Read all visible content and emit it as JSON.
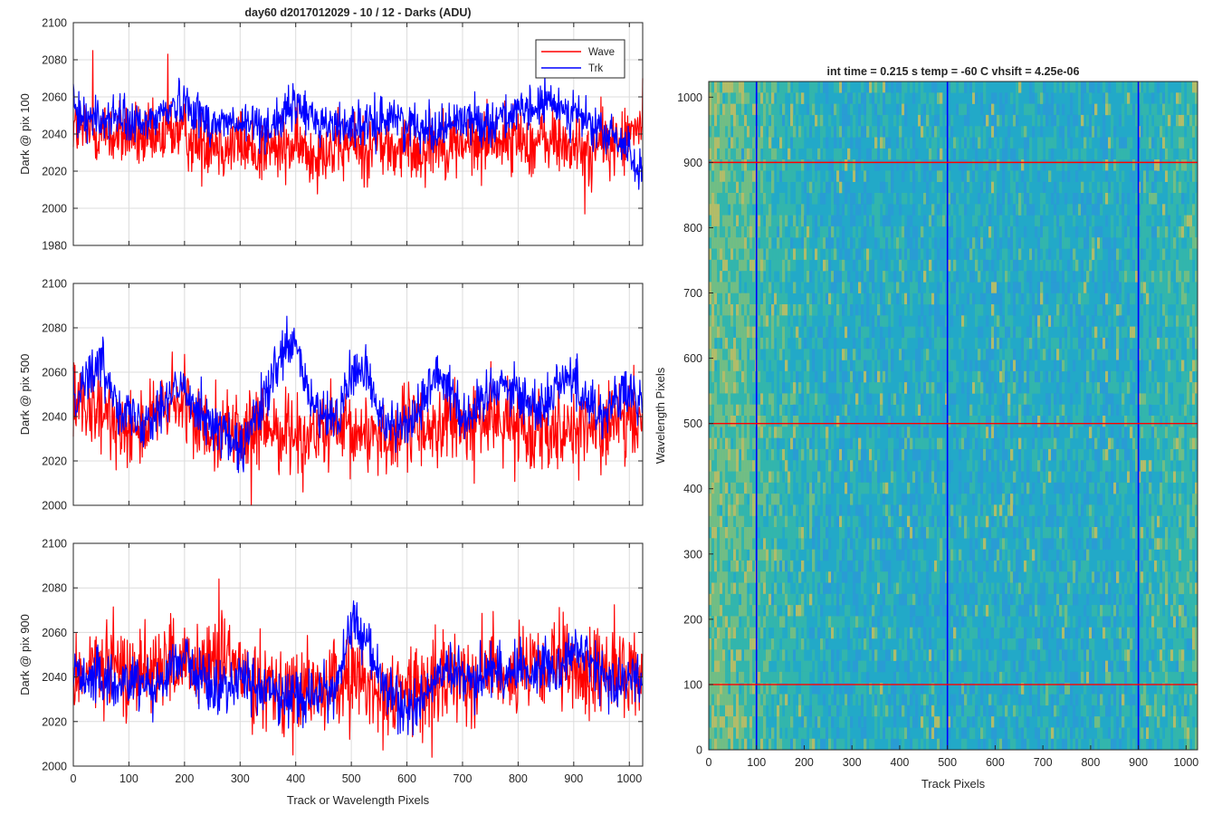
{
  "chart_data": [
    {
      "type": "line",
      "title": "day60 d2017012029 - 10 / 12 - Darks (ADU)",
      "xlabel": "",
      "ylabel": "Dark @ pix 100",
      "xlim": [
        0,
        1024
      ],
      "ylim": [
        1980,
        2100
      ],
      "xticks": [
        0,
        100,
        200,
        300,
        400,
        500,
        600,
        700,
        800,
        900,
        1000
      ],
      "yticks": [
        1980,
        2000,
        2020,
        2040,
        2060,
        2080,
        2100
      ],
      "show_xtick_labels": false,
      "grid": true,
      "legend": {
        "placement": "top-right",
        "entries": [
          "Wave",
          "Trk"
        ]
      },
      "series": [
        {
          "name": "Wave",
          "color": "#ff0000",
          "x": [
            0,
            25,
            50,
            75,
            100,
            125,
            150,
            175,
            200,
            225,
            250,
            275,
            300,
            325,
            350,
            375,
            400,
            425,
            450,
            475,
            500,
            525,
            550,
            575,
            600,
            625,
            650,
            675,
            700,
            725,
            750,
            775,
            800,
            825,
            850,
            875,
            900,
            925,
            950,
            975,
            1000,
            1024
          ],
          "y": [
            2045,
            2040,
            2042,
            2038,
            2041,
            2036,
            2035,
            2043,
            2040,
            2034,
            2038,
            2033,
            2036,
            2030,
            2032,
            2031,
            2034,
            2029,
            2033,
            2030,
            2035,
            2031,
            2036,
            2030,
            2033,
            2031,
            2037,
            2034,
            2035,
            2033,
            2040,
            2036,
            2038,
            2034,
            2037,
            2035,
            2033,
            2030,
            2036,
            2034,
            2038,
            2046
          ],
          "noise": 9,
          "spike_at": [
            [
              35,
              2085
            ],
            [
              170,
              2083
            ],
            [
              920,
              1997
            ],
            [
              1024,
              2070
            ]
          ]
        },
        {
          "name": "Trk",
          "color": "#0000ff",
          "x": [
            0,
            25,
            50,
            75,
            100,
            125,
            150,
            175,
            200,
            225,
            250,
            275,
            300,
            325,
            350,
            375,
            400,
            425,
            450,
            475,
            500,
            525,
            550,
            575,
            600,
            625,
            650,
            675,
            700,
            725,
            750,
            775,
            800,
            825,
            850,
            875,
            900,
            925,
            950,
            975,
            1000,
            1024
          ],
          "y": [
            2052,
            2050,
            2047,
            2050,
            2046,
            2044,
            2050,
            2054,
            2058,
            2051,
            2045,
            2047,
            2044,
            2046,
            2044,
            2048,
            2056,
            2050,
            2046,
            2044,
            2046,
            2043,
            2047,
            2051,
            2044,
            2046,
            2042,
            2045,
            2049,
            2047,
            2046,
            2051,
            2050,
            2053,
            2057,
            2055,
            2052,
            2046,
            2040,
            2038,
            2032,
            2015
          ],
          "noise": 6
        }
      ]
    },
    {
      "type": "line",
      "title": "",
      "xlabel": "",
      "ylabel": "Dark @ pix 500",
      "xlim": [
        0,
        1024
      ],
      "ylim": [
        2000,
        2100
      ],
      "xticks": [
        0,
        100,
        200,
        300,
        400,
        500,
        600,
        700,
        800,
        900,
        1000
      ],
      "yticks": [
        2000,
        2020,
        2040,
        2060,
        2080,
        2100
      ],
      "show_xtick_labels": false,
      "grid": true,
      "series": [
        {
          "name": "Wave",
          "color": "#ff0000",
          "x": [
            0,
            25,
            50,
            75,
            100,
            125,
            150,
            175,
            200,
            225,
            250,
            275,
            300,
            325,
            350,
            375,
            400,
            425,
            450,
            475,
            500,
            525,
            550,
            575,
            600,
            625,
            650,
            675,
            700,
            725,
            750,
            775,
            800,
            825,
            850,
            875,
            900,
            925,
            950,
            975,
            1000,
            1024
          ],
          "y": [
            2045,
            2042,
            2040,
            2038,
            2036,
            2035,
            2040,
            2045,
            2042,
            2038,
            2036,
            2034,
            2033,
            2032,
            2035,
            2034,
            2033,
            2030,
            2034,
            2032,
            2030,
            2034,
            2032,
            2030,
            2035,
            2036,
            2034,
            2038,
            2035,
            2036,
            2040,
            2038,
            2036,
            2034,
            2037,
            2035,
            2036,
            2034,
            2035,
            2037,
            2036,
            2040
          ],
          "noise": 9,
          "spike_at": [
            [
              320,
              2000
            ],
            [
              200,
              2068
            ]
          ]
        },
        {
          "name": "Trk",
          "color": "#0000ff",
          "x": [
            0,
            25,
            50,
            75,
            100,
            125,
            150,
            175,
            200,
            225,
            250,
            275,
            300,
            325,
            350,
            375,
            400,
            425,
            450,
            475,
            500,
            525,
            550,
            575,
            600,
            625,
            650,
            675,
            700,
            725,
            750,
            775,
            800,
            825,
            850,
            875,
            900,
            925,
            950,
            975,
            1000,
            1024
          ],
          "y": [
            2050,
            2058,
            2064,
            2050,
            2040,
            2038,
            2044,
            2050,
            2052,
            2045,
            2036,
            2032,
            2022,
            2038,
            2050,
            2068,
            2072,
            2048,
            2038,
            2040,
            2058,
            2062,
            2040,
            2038,
            2036,
            2044,
            2060,
            2056,
            2040,
            2042,
            2054,
            2056,
            2050,
            2045,
            2046,
            2058,
            2056,
            2048,
            2040,
            2048,
            2050,
            2044
          ],
          "noise": 6
        }
      ]
    },
    {
      "type": "line",
      "title": "",
      "xlabel": "Track or Wavelength Pixels",
      "ylabel": "Dark @ pix 900",
      "xlim": [
        0,
        1024
      ],
      "ylim": [
        2000,
        2100
      ],
      "xticks": [
        0,
        100,
        200,
        300,
        400,
        500,
        600,
        700,
        800,
        900,
        1000
      ],
      "yticks": [
        2000,
        2020,
        2040,
        2060,
        2080,
        2100
      ],
      "show_xtick_labels": true,
      "grid": true,
      "series": [
        {
          "name": "Wave",
          "color": "#ff0000",
          "x": [
            0,
            25,
            50,
            75,
            100,
            125,
            150,
            175,
            200,
            225,
            250,
            275,
            300,
            325,
            350,
            375,
            400,
            425,
            450,
            475,
            500,
            525,
            550,
            575,
            600,
            625,
            650,
            675,
            700,
            725,
            750,
            775,
            800,
            825,
            850,
            875,
            900,
            925,
            950,
            975,
            1000,
            1024
          ],
          "y": [
            2040,
            2042,
            2045,
            2044,
            2040,
            2045,
            2046,
            2048,
            2042,
            2044,
            2048,
            2046,
            2044,
            2040,
            2038,
            2036,
            2034,
            2033,
            2035,
            2036,
            2040,
            2036,
            2034,
            2030,
            2036,
            2034,
            2036,
            2040,
            2042,
            2040,
            2045,
            2043,
            2040,
            2042,
            2044,
            2045,
            2042,
            2040,
            2045,
            2044,
            2040,
            2042
          ],
          "noise": 10,
          "spike_at": [
            [
              262,
              2084
            ],
            [
              395,
              2005
            ],
            [
              645,
              2004
            ]
          ]
        },
        {
          "name": "Trk",
          "color": "#0000ff",
          "x": [
            0,
            25,
            50,
            75,
            100,
            125,
            150,
            175,
            200,
            225,
            250,
            275,
            300,
            325,
            350,
            375,
            400,
            425,
            450,
            475,
            500,
            525,
            550,
            575,
            600,
            625,
            650,
            675,
            700,
            725,
            750,
            775,
            800,
            825,
            850,
            875,
            900,
            925,
            950,
            975,
            1000,
            1024
          ],
          "y": [
            2044,
            2040,
            2038,
            2036,
            2040,
            2038,
            2036,
            2044,
            2050,
            2040,
            2034,
            2036,
            2040,
            2036,
            2034,
            2030,
            2033,
            2030,
            2034,
            2036,
            2064,
            2058,
            2040,
            2030,
            2024,
            2030,
            2038,
            2042,
            2040,
            2038,
            2044,
            2042,
            2044,
            2042,
            2046,
            2044,
            2054,
            2048,
            2040,
            2036,
            2040,
            2040
          ],
          "noise": 6
        }
      ]
    },
    {
      "type": "heatmap",
      "title": "int time = 0.215 s   temp = -60 C   vhsift = 4.25e-06",
      "xlabel": "Track Pixels",
      "ylabel": "Wavelength Pixels",
      "xlim": [
        0,
        1024
      ],
      "ylim": [
        0,
        1024
      ],
      "xticks": [
        0,
        100,
        200,
        300,
        400,
        500,
        600,
        700,
        800,
        900,
        1000
      ],
      "yticks": [
        0,
        100,
        200,
        300,
        400,
        500,
        600,
        700,
        800,
        900,
        1000
      ],
      "colormap": [
        "#2a9ad6",
        "#22a9c8",
        "#35b7a8",
        "#7cc17a",
        "#c8c05a"
      ],
      "vertical_lines": {
        "x": [
          100,
          500,
          900
        ],
        "color": "#0000ff"
      },
      "horizontal_lines": {
        "y": [
          100,
          500,
          900
        ],
        "color": "#ff0000"
      }
    }
  ]
}
